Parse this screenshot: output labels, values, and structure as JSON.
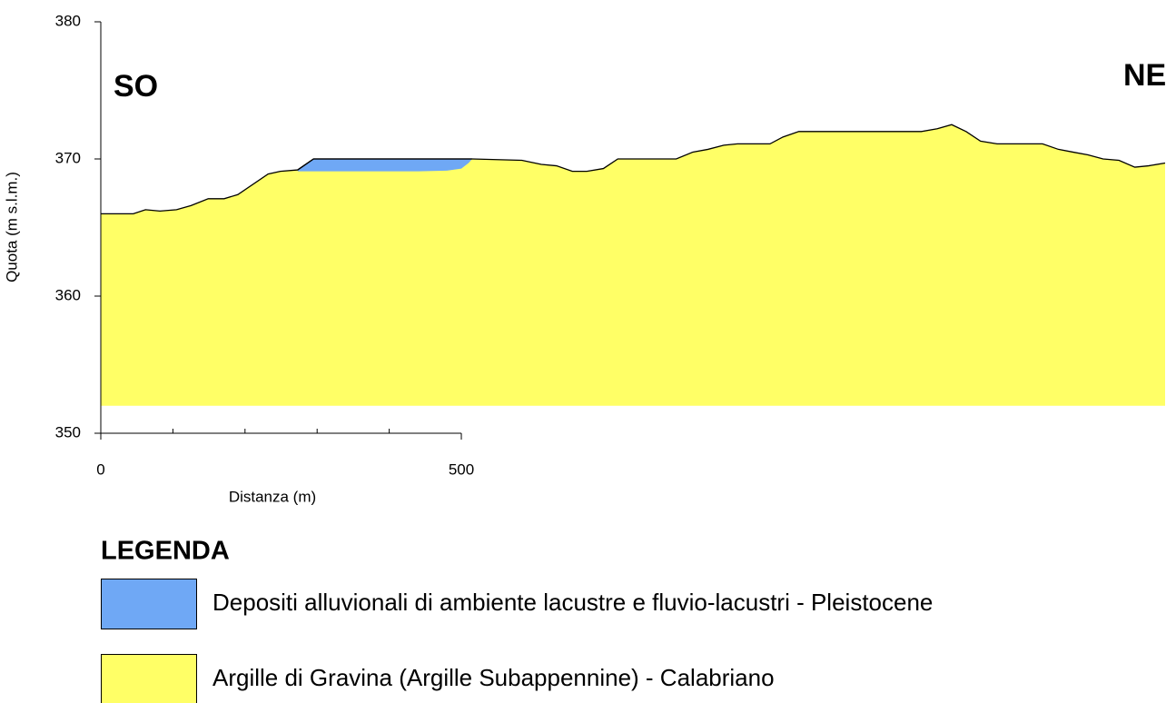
{
  "chart_data": {
    "type": "area",
    "left_label": "SO",
    "right_label": "NE",
    "xlabel": "Distanza (m)",
    "ylabel": "Quota (m s.l.m.)",
    "legend_title": "LEGENDA",
    "xlim": [
      0,
      1476
    ],
    "ylim": [
      350,
      380
    ],
    "xticks": [
      0,
      500
    ],
    "xminorticks": [
      100,
      200,
      300,
      400
    ],
    "yticks": [
      350,
      360,
      370,
      380
    ],
    "series": [
      {
        "name": "Depositi alluvionali di ambiente lacustre e fluvio-lacustri - Pleistocene",
        "color": "#6fa8f5",
        "x": [
          273,
          295,
          515,
          510,
          500,
          480,
          440,
          273
        ],
        "values": [
          369.2,
          370,
          370,
          369.7,
          369.3,
          369.15,
          369.1,
          369.1
        ]
      },
      {
        "name": "Argille di Gravina (Argille Subappennine) - Calabriano",
        "color": "#ffff66",
        "x": [
          0,
          45,
          62,
          82,
          105,
          125,
          149,
          171,
          190,
          232,
          249,
          273,
          295,
          515,
          584,
          611,
          632,
          654,
          674,
          697,
          717,
          798,
          821,
          842,
          864,
          883,
          928,
          946,
          968,
          1138,
          1160,
          1180,
          1200,
          1220,
          1243,
          1306,
          1328,
          1348,
          1369,
          1390,
          1412,
          1434,
          1453,
          1476,
          1476,
          0
        ],
        "values": [
          366.0,
          366.0,
          366.3,
          366.2,
          366.3,
          366.6,
          367.1,
          367.1,
          367.4,
          368.9,
          369.1,
          369.2,
          370,
          370,
          369.9,
          369.6,
          369.5,
          369.1,
          369.1,
          369.3,
          370,
          370,
          370.5,
          370.7,
          371.0,
          371.1,
          371.1,
          371.6,
          372.0,
          372.0,
          372.2,
          372.5,
          372.0,
          371.3,
          371.1,
          371.1,
          370.7,
          370.5,
          370.3,
          370.0,
          369.9,
          369.4,
          369.5,
          369.7,
          352,
          352
        ]
      }
    ]
  }
}
